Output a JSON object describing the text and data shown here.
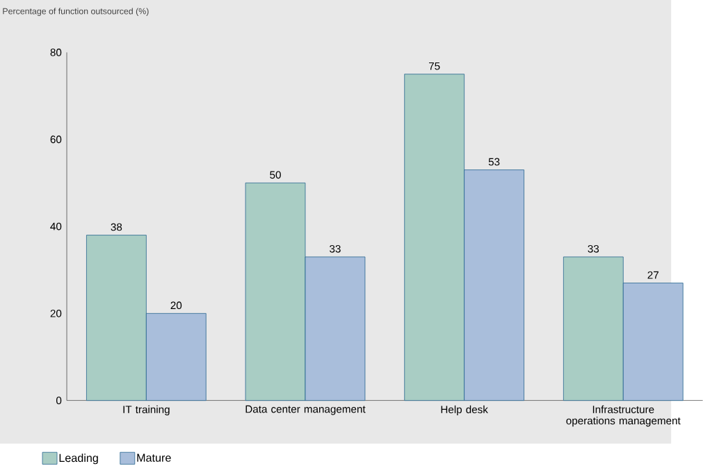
{
  "chart_data": {
    "type": "bar",
    "ylabel": "Percentage of function outsourced (%)",
    "categories": [
      "IT training",
      "Data center management",
      "Help desk",
      "Infrastructure operations management"
    ],
    "series": [
      {
        "name": "Leading",
        "color": "#a9cdc4",
        "values": [
          38,
          50,
          75,
          33
        ]
      },
      {
        "name": "Mature",
        "color": "#a9bedb",
        "values": [
          20,
          33,
          53,
          27
        ]
      }
    ],
    "ylim": [
      0,
      80
    ],
    "yticks": [
      0,
      20,
      40,
      60,
      80
    ],
    "data_labels": true,
    "legend": "bottom left"
  }
}
